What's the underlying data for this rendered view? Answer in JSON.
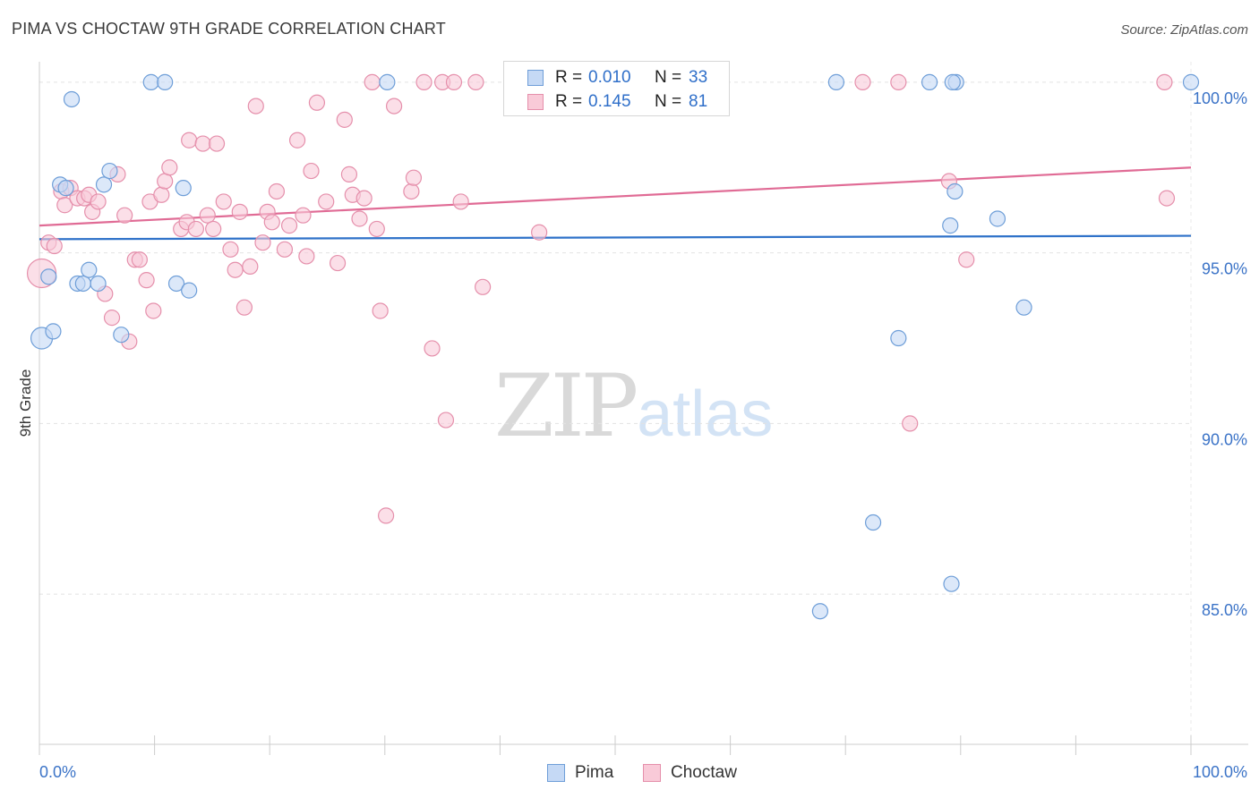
{
  "chart_title": "PIMA VS CHOCTAW 9TH GRADE CORRELATION CHART",
  "source_label": "Source: ZipAtlas.com",
  "watermark": {
    "zip": "ZIP",
    "atlas": "atlas"
  },
  "legend": {
    "r_label": "R =",
    "n_label": "N =",
    "rows": [
      {
        "r_value": "0.010",
        "n_value": "33",
        "fill": "#c5d9f5",
        "stroke": "#6e9ed8"
      },
      {
        "r_value": "0.145",
        "n_value": "81",
        "fill": "#f9cad8",
        "stroke": "#e58fab"
      }
    ]
  },
  "bottom_legend": [
    {
      "label": "Pima",
      "fill": "#c5d9f5",
      "stroke": "#6e9ed8"
    },
    {
      "label": "Choctaw",
      "fill": "#f9cad8",
      "stroke": "#e58fab"
    }
  ],
  "chart_data": {
    "type": "scatter",
    "title": "PIMA VS CHOCTAW 9TH GRADE CORRELATION CHART",
    "ylabel": "9th Grade",
    "xlabel": "",
    "xlim": [
      0,
      100
    ],
    "ylim": [
      80.6,
      100.6
    ],
    "x_tick_labels": [
      {
        "value": 0,
        "label": "0.0%"
      },
      {
        "value": 100,
        "label": "100.0%"
      }
    ],
    "y_tick_labels": [
      {
        "value": 100,
        "label": "100.0%"
      },
      {
        "value": 95,
        "label": "95.0%"
      },
      {
        "value": 90,
        "label": "90.0%"
      },
      {
        "value": 85,
        "label": "85.0%"
      }
    ],
    "grid": true,
    "legend_position": "top-center",
    "series": [
      {
        "name": "Pima",
        "color": "#6e9ed8",
        "fill": "#c5d9f5",
        "trend_color": "#2f72c9",
        "trend": {
          "x": [
            0,
            100
          ],
          "y": [
            95.4,
            95.5
          ]
        },
        "points": [
          {
            "x": 0.2,
            "y": 92.5,
            "r": 12
          },
          {
            "x": 0.8,
            "y": 94.3
          },
          {
            "x": 1.2,
            "y": 92.7
          },
          {
            "x": 1.8,
            "y": 97.0
          },
          {
            "x": 2.3,
            "y": 96.9
          },
          {
            "x": 2.8,
            "y": 99.5
          },
          {
            "x": 3.3,
            "y": 94.1
          },
          {
            "x": 3.8,
            "y": 94.1
          },
          {
            "x": 4.3,
            "y": 94.5
          },
          {
            "x": 5.1,
            "y": 94.1
          },
          {
            "x": 5.6,
            "y": 97.0
          },
          {
            "x": 6.1,
            "y": 97.4
          },
          {
            "x": 7.1,
            "y": 92.6
          },
          {
            "x": 9.7,
            "y": 100.0
          },
          {
            "x": 10.9,
            "y": 100.0
          },
          {
            "x": 11.9,
            "y": 94.1
          },
          {
            "x": 12.5,
            "y": 96.9
          },
          {
            "x": 13.0,
            "y": 93.9
          },
          {
            "x": 30.2,
            "y": 100.0
          },
          {
            "x": 49.5,
            "y": 100.0
          },
          {
            "x": 67.8,
            "y": 84.5
          },
          {
            "x": 69.2,
            "y": 100.0
          },
          {
            "x": 72.4,
            "y": 87.1
          },
          {
            "x": 74.6,
            "y": 92.5
          },
          {
            "x": 77.3,
            "y": 100.0
          },
          {
            "x": 79.5,
            "y": 96.8
          },
          {
            "x": 79.6,
            "y": 100.0
          },
          {
            "x": 79.3,
            "y": 100.0
          },
          {
            "x": 79.1,
            "y": 95.8
          },
          {
            "x": 79.2,
            "y": 85.3
          },
          {
            "x": 83.2,
            "y": 96.0
          },
          {
            "x": 85.5,
            "y": 93.4
          },
          {
            "x": 100.0,
            "y": 100.0
          }
        ]
      },
      {
        "name": "Choctaw",
        "color": "#e58fab",
        "fill": "#f9cad8",
        "trend_color": "#e06b95",
        "trend": {
          "x": [
            0,
            100
          ],
          "y": [
            95.8,
            97.5
          ]
        },
        "points": [
          {
            "x": 0.2,
            "y": 94.4,
            "r": 16
          },
          {
            "x": 0.8,
            "y": 95.3
          },
          {
            "x": 1.3,
            "y": 95.2
          },
          {
            "x": 1.9,
            "y": 96.8
          },
          {
            "x": 2.2,
            "y": 96.4
          },
          {
            "x": 2.7,
            "y": 96.9
          },
          {
            "x": 3.3,
            "y": 96.6
          },
          {
            "x": 3.9,
            "y": 96.6
          },
          {
            "x": 4.3,
            "y": 96.7
          },
          {
            "x": 4.6,
            "y": 96.2
          },
          {
            "x": 5.1,
            "y": 96.5
          },
          {
            "x": 5.7,
            "y": 93.8
          },
          {
            "x": 6.3,
            "y": 93.1
          },
          {
            "x": 6.8,
            "y": 97.3
          },
          {
            "x": 7.4,
            "y": 96.1
          },
          {
            "x": 7.8,
            "y": 92.4
          },
          {
            "x": 8.3,
            "y": 94.8
          },
          {
            "x": 8.7,
            "y": 94.8
          },
          {
            "x": 9.3,
            "y": 94.2
          },
          {
            "x": 9.6,
            "y": 96.5
          },
          {
            "x": 9.9,
            "y": 93.3
          },
          {
            "x": 10.6,
            "y": 96.7
          },
          {
            "x": 10.9,
            "y": 97.1
          },
          {
            "x": 11.3,
            "y": 97.5
          },
          {
            "x": 12.3,
            "y": 95.7
          },
          {
            "x": 12.8,
            "y": 95.9
          },
          {
            "x": 13.0,
            "y": 98.3
          },
          {
            "x": 13.6,
            "y": 95.7
          },
          {
            "x": 14.2,
            "y": 98.2
          },
          {
            "x": 14.6,
            "y": 96.1
          },
          {
            "x": 15.1,
            "y": 95.7
          },
          {
            "x": 15.4,
            "y": 98.2
          },
          {
            "x": 16.0,
            "y": 96.5
          },
          {
            "x": 16.6,
            "y": 95.1
          },
          {
            "x": 17.0,
            "y": 94.5
          },
          {
            "x": 17.4,
            "y": 96.2
          },
          {
            "x": 17.8,
            "y": 93.4
          },
          {
            "x": 18.3,
            "y": 94.6
          },
          {
            "x": 18.8,
            "y": 99.3
          },
          {
            "x": 19.4,
            "y": 95.3
          },
          {
            "x": 19.8,
            "y": 96.2
          },
          {
            "x": 20.2,
            "y": 95.9
          },
          {
            "x": 20.6,
            "y": 96.8
          },
          {
            "x": 21.3,
            "y": 95.1
          },
          {
            "x": 21.7,
            "y": 95.8
          },
          {
            "x": 22.4,
            "y": 98.3
          },
          {
            "x": 22.9,
            "y": 96.1
          },
          {
            "x": 23.2,
            "y": 94.9
          },
          {
            "x": 23.6,
            "y": 97.4
          },
          {
            "x": 24.1,
            "y": 99.4
          },
          {
            "x": 24.9,
            "y": 96.5
          },
          {
            "x": 25.9,
            "y": 94.7
          },
          {
            "x": 26.5,
            "y": 98.9
          },
          {
            "x": 26.9,
            "y": 97.3
          },
          {
            "x": 27.2,
            "y": 96.7
          },
          {
            "x": 27.8,
            "y": 96.0
          },
          {
            "x": 28.2,
            "y": 96.6
          },
          {
            "x": 28.9,
            "y": 100.0
          },
          {
            "x": 29.3,
            "y": 95.7
          },
          {
            "x": 29.6,
            "y": 93.3
          },
          {
            "x": 30.1,
            "y": 87.3
          },
          {
            "x": 30.8,
            "y": 99.3
          },
          {
            "x": 32.3,
            "y": 96.8
          },
          {
            "x": 32.5,
            "y": 97.2
          },
          {
            "x": 33.4,
            "y": 100.0
          },
          {
            "x": 34.1,
            "y": 92.2
          },
          {
            "x": 35.0,
            "y": 100.0
          },
          {
            "x": 35.3,
            "y": 90.1
          },
          {
            "x": 36.0,
            "y": 100.0
          },
          {
            "x": 36.6,
            "y": 96.5
          },
          {
            "x": 37.9,
            "y": 100.0
          },
          {
            "x": 38.5,
            "y": 94.0
          },
          {
            "x": 43.4,
            "y": 95.6
          },
          {
            "x": 45.0,
            "y": 100.0
          },
          {
            "x": 71.5,
            "y": 100.0
          },
          {
            "x": 74.6,
            "y": 100.0
          },
          {
            "x": 75.6,
            "y": 90.0
          },
          {
            "x": 79.0,
            "y": 97.1
          },
          {
            "x": 80.5,
            "y": 94.8
          },
          {
            "x": 97.7,
            "y": 100.0
          },
          {
            "x": 97.9,
            "y": 96.6
          }
        ]
      }
    ]
  }
}
